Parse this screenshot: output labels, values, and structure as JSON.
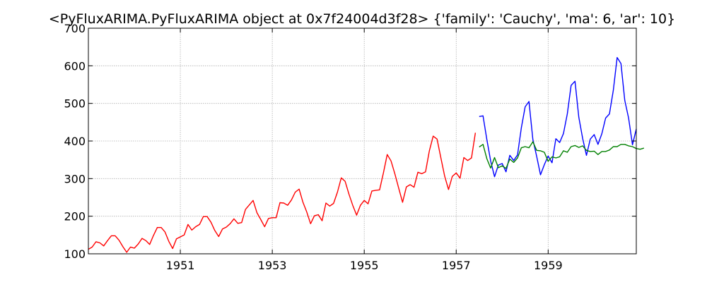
{
  "chart_data": {
    "type": "line",
    "title": "<PyFluxARIMA.PyFluxARIMA object at 0x7f24004d3f28> {'family': 'Cauchy', 'ma': 6, 'ar': 10}",
    "xlabel": "",
    "ylabel": "",
    "xlim": [
      1949.0,
      1960.917
    ],
    "ylim": [
      100,
      700
    ],
    "xticks": [
      1951,
      1953,
      1955,
      1957,
      1959
    ],
    "xtick_labels": [
      "1951",
      "1953",
      "1955",
      "1957",
      "1959"
    ],
    "yticks": [
      100,
      200,
      300,
      400,
      500,
      600,
      700
    ],
    "ytick_labels": [
      "100",
      "200",
      "300",
      "400",
      "500",
      "600",
      "700"
    ],
    "grid": true,
    "legend": "none",
    "series": [
      {
        "color": "#ff0000",
        "x_start": 1949.0,
        "x_step": 0.083333,
        "values": [
          112,
          118,
          132,
          129,
          121,
          135,
          148,
          148,
          136,
          119,
          104,
          118,
          115,
          126,
          141,
          135,
          125,
          149,
          170,
          170,
          158,
          133,
          114,
          140,
          145,
          150,
          178,
          163,
          172,
          178,
          199,
          199,
          184,
          162,
          146,
          166,
          171,
          180,
          193,
          181,
          183,
          218,
          230,
          242,
          209,
          191,
          172,
          194,
          196,
          196,
          236,
          235,
          229,
          243,
          264,
          272,
          237,
          211,
          180,
          201,
          204,
          188,
          235,
          227,
          234,
          264,
          302,
          293,
          259,
          229,
          203,
          229,
          242,
          233,
          267,
          269,
          270,
          315,
          364,
          347,
          312,
          274,
          237,
          278,
          284,
          277,
          317,
          313,
          318,
          374,
          413,
          405,
          355,
          306,
          271,
          306,
          315,
          301,
          356,
          348,
          355,
          422
        ]
      },
      {
        "color": "#0000ff",
        "x_start": 1957.5,
        "x_step": 0.083333,
        "values": [
          465,
          467,
          404,
          347,
          305,
          336,
          340,
          318,
          362,
          348,
          363,
          435,
          491,
          505,
          404,
          359,
          310,
          337,
          360,
          342,
          406,
          396,
          420,
          472,
          548,
          559,
          463,
          407,
          362,
          405,
          417,
          391,
          419,
          461,
          472,
          535,
          622,
          606,
          508,
          461,
          390,
          432
        ]
      },
      {
        "color": "#008000",
        "x_start": 1957.5,
        "x_step": 0.083333,
        "values": [
          384,
          391,
          353,
          328,
          356,
          329,
          334,
          327,
          352,
          343,
          355,
          382,
          385,
          382,
          398,
          375,
          374,
          370,
          346,
          358,
          355,
          358,
          374,
          370,
          385,
          388,
          383,
          387,
          375,
          372,
          373,
          364,
          372,
          372,
          376,
          385,
          385,
          391,
          391,
          387,
          385,
          380,
          378,
          381
        ]
      }
    ]
  }
}
